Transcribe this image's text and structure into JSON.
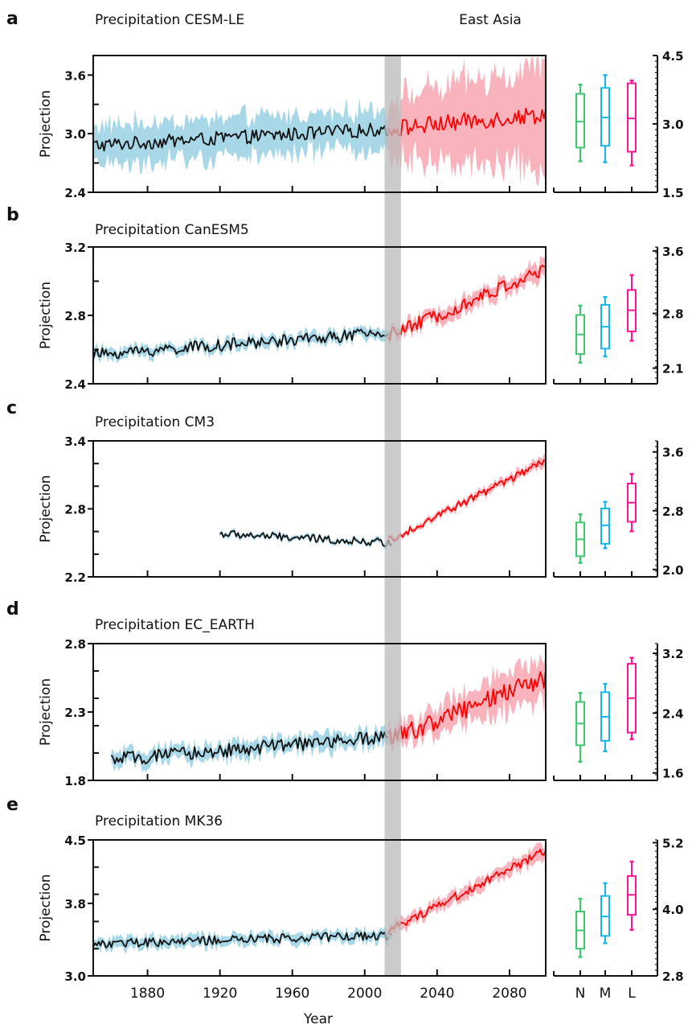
{
  "figure": {
    "region_label": "East Asia",
    "x_axis_label": "Year",
    "y_axis_label": "Projection",
    "variable": "Precipitation",
    "colors": {
      "historical_line": "#111111",
      "historical_band": "#a8d8e8",
      "projection_line": "#ff0000",
      "projection_band": "#f9b3bd",
      "overlap_bar": "#b9b9b9",
      "box_N": "#3cc96e",
      "box_M": "#14b8f0",
      "box_L": "#ff1493"
    }
  },
  "chart_data": [
    {
      "type": "line",
      "panel": "a",
      "title": "Precipitation",
      "model": "CESM-LE",
      "xlabel": "",
      "ylabel": "Projection",
      "xlim": [
        1850,
        2100
      ],
      "x_ticks": [
        1880,
        1920,
        1960,
        2000,
        2040,
        2080
      ],
      "x_tick_labels": [],
      "ylim": [
        2.4,
        3.8
      ],
      "y_tick_labels": [
        "3.6",
        "3.0",
        "2.4"
      ],
      "y_tick_values": [
        3.6,
        3.0,
        2.4
      ],
      "y_minor_ticks": [
        3.3,
        2.7
      ],
      "overlap_period": [
        2011,
        2020
      ],
      "series": [
        {
          "name": "historical",
          "x_start": 1850,
          "x_end": 2015,
          "mean_start": 2.88,
          "mean_end": 3.05,
          "noise": 0.07,
          "band_halfwidth": 0.2,
          "band_halfwidth_end": 0.2
        },
        {
          "name": "projection",
          "x_start": 2013,
          "x_end": 2100,
          "mean_start": 3.05,
          "mean_end": 3.2,
          "noise": 0.09,
          "band_halfwidth": 0.3,
          "band_halfwidth_end": 0.5
        }
      ],
      "box_axis": {
        "ylim": [
          1.5,
          4.5
        ],
        "tick_labels": [
          "4.5",
          "3.0",
          "1.5"
        ],
        "tick_values": [
          4.5,
          3.0,
          1.5
        ]
      },
      "boxes": [
        {
          "category": "N",
          "whisker_low": 2.18,
          "q1": 2.48,
          "median": 3.05,
          "q3": 3.66,
          "whisker_high": 3.86
        },
        {
          "category": "M",
          "whisker_low": 2.16,
          "q1": 2.52,
          "median": 3.14,
          "q3": 3.79,
          "whisker_high": 4.07
        },
        {
          "category": "L",
          "whisker_low": 2.09,
          "q1": 2.39,
          "median": 3.12,
          "q3": 3.89,
          "whisker_high": 3.95
        }
      ]
    },
    {
      "type": "line",
      "panel": "b",
      "title": "Precipitation",
      "model": "CanESM5",
      "ylim": [
        2.4,
        3.2
      ],
      "y_tick_labels": [
        "3.2",
        "2.8",
        "2.4"
      ],
      "y_tick_values": [
        3.2,
        2.8,
        2.4
      ],
      "y_minor_ticks": [
        3.0,
        2.6
      ],
      "xlim": [
        1850,
        2100
      ],
      "x_ticks": [
        1880,
        1920,
        1960,
        2000,
        2040,
        2080
      ],
      "x_tick_labels": [],
      "overlap_period": [
        2011,
        2020
      ],
      "series": [
        {
          "name": "historical",
          "x_start": 1850,
          "x_end": 2015,
          "mean_start": 2.57,
          "mean_end": 2.7,
          "noise": 0.035,
          "band_halfwidth": 0.03,
          "band_halfwidth_end": 0.03
        },
        {
          "name": "projection",
          "x_start": 2013,
          "x_end": 2100,
          "mean_start": 2.68,
          "mean_end": 3.07,
          "noise": 0.04,
          "band_halfwidth": 0.03,
          "band_halfwidth_end": 0.05
        }
      ],
      "box_axis": {
        "ylim": [
          1.9,
          3.65
        ],
        "tick_labels": [
          "3.6",
          "2.8",
          "2.1"
        ],
        "tick_values": [
          3.6,
          2.8,
          2.1
        ]
      },
      "boxes": [
        {
          "category": "N",
          "whisker_low": 2.17,
          "q1": 2.28,
          "median": 2.53,
          "q3": 2.78,
          "whisker_high": 2.9
        },
        {
          "category": "M",
          "whisker_low": 2.25,
          "q1": 2.35,
          "median": 2.63,
          "q3": 2.91,
          "whisker_high": 3.01
        },
        {
          "category": "L",
          "whisker_low": 2.45,
          "q1": 2.57,
          "median": 2.84,
          "q3": 3.1,
          "whisker_high": 3.29
        }
      ]
    },
    {
      "type": "line",
      "panel": "c",
      "title": "Precipitation",
      "model": "CM3",
      "ylim": [
        2.2,
        3.4
      ],
      "y_tick_labels": [
        "3.4",
        "2.8",
        "2.2"
      ],
      "y_tick_values": [
        3.4,
        2.8,
        2.2
      ],
      "y_minor_ticks": [
        3.2,
        3.0,
        2.6,
        2.4
      ],
      "xlim": [
        1850,
        2100
      ],
      "x_ticks": [
        1880,
        1920,
        1960,
        2000,
        2040,
        2080
      ],
      "x_tick_labels": [],
      "overlap_period": [
        2011,
        2020
      ],
      "series": [
        {
          "name": "historical",
          "x_start": 1920,
          "x_end": 2015,
          "mean_start": 2.58,
          "mean_end": 2.5,
          "noise": 0.035,
          "band_halfwidth": 0.02,
          "band_halfwidth_end": 0.02
        },
        {
          "name": "projection",
          "x_start": 2013,
          "x_end": 2100,
          "mean_start": 2.52,
          "mean_end": 3.22,
          "noise": 0.035,
          "band_halfwidth": 0.02,
          "band_halfwidth_end": 0.04
        }
      ],
      "box_axis": {
        "ylim": [
          1.9,
          3.75
        ],
        "tick_labels": [
          "3.6",
          "2.8",
          "2.0"
        ],
        "tick_values": [
          3.6,
          2.8,
          2.0
        ]
      },
      "boxes": [
        {
          "category": "N",
          "whisker_low": 2.09,
          "q1": 2.18,
          "median": 2.41,
          "q3": 2.64,
          "whisker_high": 2.75
        },
        {
          "category": "M",
          "whisker_low": 2.29,
          "q1": 2.35,
          "median": 2.6,
          "q3": 2.83,
          "whisker_high": 2.92
        },
        {
          "category": "L",
          "whisker_low": 2.52,
          "q1": 2.65,
          "median": 2.91,
          "q3": 3.17,
          "whisker_high": 3.3
        }
      ]
    },
    {
      "type": "line",
      "panel": "d",
      "title": "Precipitation",
      "model": "EC_EARTH",
      "ylim": [
        1.8,
        2.8
      ],
      "y_tick_labels": [
        "2.8",
        "2.3",
        "1.8"
      ],
      "y_tick_values": [
        2.8,
        2.3,
        1.8
      ],
      "y_minor_ticks": [
        2.6,
        2.4,
        2.2,
        2.0
      ],
      "xlim": [
        1850,
        2100
      ],
      "x_ticks": [
        1880,
        1920,
        1960,
        2000,
        2040,
        2080
      ],
      "x_tick_labels": [],
      "overlap_period": [
        2011,
        2020
      ],
      "series": [
        {
          "name": "historical",
          "x_start": 1860,
          "x_end": 2015,
          "mean_start": 1.95,
          "mean_end": 2.12,
          "noise": 0.05,
          "band_halfwidth": 0.05,
          "band_halfwidth_end": 0.06
        },
        {
          "name": "projection",
          "x_start": 2013,
          "x_end": 2100,
          "mean_start": 2.1,
          "mean_end": 2.55,
          "noise": 0.07,
          "band_halfwidth": 0.07,
          "band_halfwidth_end": 0.16
        }
      ],
      "box_axis": {
        "ylim": [
          1.5,
          3.33
        ],
        "tick_labels": [
          "3.2",
          "2.4",
          "1.6"
        ],
        "tick_values": [
          3.2,
          2.4,
          1.6
        ]
      },
      "boxes": [
        {
          "category": "N",
          "whisker_low": 1.75,
          "q1": 1.97,
          "median": 2.26,
          "q3": 2.55,
          "whisker_high": 2.67
        },
        {
          "category": "M",
          "whisker_low": 1.89,
          "q1": 2.03,
          "median": 2.35,
          "q3": 2.68,
          "whisker_high": 2.79
        },
        {
          "category": "L",
          "whisker_low": 2.05,
          "q1": 2.14,
          "median": 2.6,
          "q3": 3.06,
          "whisker_high": 3.14
        }
      ]
    },
    {
      "type": "line",
      "panel": "e",
      "title": "Precipitation",
      "model": "MK36",
      "ylim": [
        3.0,
        4.5
      ],
      "y_tick_labels": [
        "4.5",
        "3.8",
        "3.0"
      ],
      "y_tick_values": [
        4.5,
        3.8,
        3.0
      ],
      "y_minor_ticks": [
        4.2,
        3.9,
        3.6,
        3.3
      ],
      "xlim": [
        1850,
        2100
      ],
      "x_ticks": [
        1880,
        1920,
        1960,
        2000,
        2040,
        2080
      ],
      "x_tick_labels": [
        "1880",
        "1920",
        "1960",
        "2000",
        "2040",
        "2080"
      ],
      "overlap_period": [
        2011,
        2020
      ],
      "series": [
        {
          "name": "historical",
          "x_start": 1850,
          "x_end": 2015,
          "mean_start": 3.35,
          "mean_end": 3.45,
          "noise": 0.05,
          "band_halfwidth": 0.06,
          "band_halfwidth_end": 0.06
        },
        {
          "name": "projection",
          "x_start": 2013,
          "x_end": 2100,
          "mean_start": 3.5,
          "mean_end": 4.38,
          "noise": 0.05,
          "band_halfwidth": 0.06,
          "band_halfwidth_end": 0.08
        }
      ],
      "box_axis": {
        "ylim": [
          2.8,
          5.25
        ],
        "tick_labels": [
          "5.2",
          "4.0",
          "2.8"
        ],
        "tick_values": [
          5.2,
          4.0,
          2.8
        ]
      },
      "box_category_labels": [
        "N",
        "M",
        "L"
      ],
      "boxes": [
        {
          "category": "N",
          "whisker_low": 3.14,
          "q1": 3.29,
          "median": 3.62,
          "q3": 3.96,
          "whisker_high": 4.19
        },
        {
          "category": "M",
          "whisker_low": 3.39,
          "q1": 3.52,
          "median": 3.87,
          "q3": 4.24,
          "whisker_high": 4.47
        },
        {
          "category": "L",
          "whisker_low": 3.63,
          "q1": 3.9,
          "median": 4.26,
          "q3": 4.6,
          "whisker_high": 4.86
        }
      ]
    }
  ]
}
